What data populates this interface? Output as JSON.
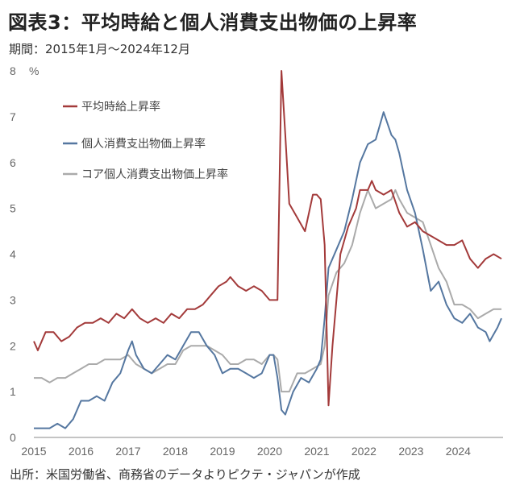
{
  "title": "図表3：平均時給と個人消費支出物価の上昇率",
  "subtitle": "期間：2015年1月～2024年12月",
  "source": "出所：米国労働省、商務省のデータよりピクテ・ジャパンが作成",
  "chart_data": {
    "type": "line",
    "unit": "%",
    "ylim": [
      0,
      8
    ],
    "yticks": [
      0,
      1,
      2,
      3,
      4,
      5,
      6,
      7,
      8
    ],
    "x_tick_labels": [
      "2015",
      "2016",
      "2017",
      "2018",
      "2019",
      "2020",
      "2021",
      "2022",
      "2023",
      "2024"
    ],
    "grid": false,
    "legend_position": "top-left",
    "series": [
      {
        "name": "平均時給上昇率",
        "color": "#a33a3a",
        "points": [
          [
            "2015-01",
            2.1
          ],
          [
            "2015-02",
            1.9
          ],
          [
            "2015-04",
            2.3
          ],
          [
            "2015-06",
            2.3
          ],
          [
            "2015-08",
            2.1
          ],
          [
            "2015-10",
            2.2
          ],
          [
            "2015-12",
            2.4
          ],
          [
            "2016-02",
            2.5
          ],
          [
            "2016-04",
            2.5
          ],
          [
            "2016-06",
            2.6
          ],
          [
            "2016-08",
            2.5
          ],
          [
            "2016-10",
            2.7
          ],
          [
            "2016-12",
            2.6
          ],
          [
            "2017-02",
            2.8
          ],
          [
            "2017-04",
            2.6
          ],
          [
            "2017-06",
            2.5
          ],
          [
            "2017-08",
            2.6
          ],
          [
            "2017-10",
            2.5
          ],
          [
            "2017-12",
            2.7
          ],
          [
            "2018-02",
            2.6
          ],
          [
            "2018-04",
            2.8
          ],
          [
            "2018-06",
            2.8
          ],
          [
            "2018-08",
            2.9
          ],
          [
            "2018-10",
            3.1
          ],
          [
            "2018-12",
            3.3
          ],
          [
            "2019-02",
            3.4
          ],
          [
            "2019-03",
            3.5
          ],
          [
            "2019-05",
            3.3
          ],
          [
            "2019-07",
            3.2
          ],
          [
            "2019-09",
            3.3
          ],
          [
            "2019-11",
            3.2
          ],
          [
            "2020-01",
            3.0
          ],
          [
            "2020-03",
            3.0
          ],
          [
            "2020-04",
            8.0
          ],
          [
            "2020-05",
            6.6
          ],
          [
            "2020-06",
            5.1
          ],
          [
            "2020-08",
            4.8
          ],
          [
            "2020-10",
            4.5
          ],
          [
            "2020-12",
            5.3
          ],
          [
            "2021-01",
            5.3
          ],
          [
            "2021-02",
            5.2
          ],
          [
            "2021-03",
            4.2
          ],
          [
            "2021-04",
            0.7
          ],
          [
            "2021-05",
            2.0
          ],
          [
            "2021-07",
            4.0
          ],
          [
            "2021-09",
            4.6
          ],
          [
            "2021-11",
            5.0
          ],
          [
            "2021-12",
            5.4
          ],
          [
            "2022-02",
            5.4
          ],
          [
            "2022-03",
            5.6
          ],
          [
            "2022-04",
            5.4
          ],
          [
            "2022-06",
            5.3
          ],
          [
            "2022-08",
            5.4
          ],
          [
            "2022-10",
            4.9
          ],
          [
            "2022-12",
            4.6
          ],
          [
            "2023-02",
            4.7
          ],
          [
            "2023-04",
            4.5
          ],
          [
            "2023-06",
            4.4
          ],
          [
            "2023-08",
            4.3
          ],
          [
            "2023-10",
            4.2
          ],
          [
            "2023-12",
            4.2
          ],
          [
            "2024-02",
            4.3
          ],
          [
            "2024-04",
            3.9
          ],
          [
            "2024-06",
            3.7
          ],
          [
            "2024-08",
            3.9
          ],
          [
            "2024-10",
            4.0
          ],
          [
            "2024-12",
            3.9
          ]
        ]
      },
      {
        "name": "個人消費支出物価上昇率",
        "color": "#5577a0",
        "points": [
          [
            "2015-01",
            0.2
          ],
          [
            "2015-03",
            0.2
          ],
          [
            "2015-05",
            0.2
          ],
          [
            "2015-07",
            0.3
          ],
          [
            "2015-09",
            0.2
          ],
          [
            "2015-11",
            0.4
          ],
          [
            "2016-01",
            0.8
          ],
          [
            "2016-03",
            0.8
          ],
          [
            "2016-05",
            0.9
          ],
          [
            "2016-07",
            0.8
          ],
          [
            "2016-09",
            1.2
          ],
          [
            "2016-11",
            1.4
          ],
          [
            "2017-01",
            1.9
          ],
          [
            "2017-02",
            2.1
          ],
          [
            "2017-03",
            1.8
          ],
          [
            "2017-05",
            1.5
          ],
          [
            "2017-07",
            1.4
          ],
          [
            "2017-09",
            1.6
          ],
          [
            "2017-11",
            1.8
          ],
          [
            "2018-01",
            1.7
          ],
          [
            "2018-03",
            2.0
          ],
          [
            "2018-05",
            2.3
          ],
          [
            "2018-07",
            2.3
          ],
          [
            "2018-09",
            2.0
          ],
          [
            "2018-11",
            1.8
          ],
          [
            "2019-01",
            1.4
          ],
          [
            "2019-03",
            1.5
          ],
          [
            "2019-05",
            1.5
          ],
          [
            "2019-07",
            1.4
          ],
          [
            "2019-09",
            1.3
          ],
          [
            "2019-11",
            1.4
          ],
          [
            "2020-01",
            1.8
          ],
          [
            "2020-02",
            1.8
          ],
          [
            "2020-03",
            1.3
          ],
          [
            "2020-04",
            0.6
          ],
          [
            "2020-05",
            0.5
          ],
          [
            "2020-07",
            1.0
          ],
          [
            "2020-09",
            1.3
          ],
          [
            "2020-11",
            1.2
          ],
          [
            "2021-01",
            1.5
          ],
          [
            "2021-02",
            1.7
          ],
          [
            "2021-03",
            2.6
          ],
          [
            "2021-04",
            3.7
          ],
          [
            "2021-06",
            4.1
          ],
          [
            "2021-08",
            4.5
          ],
          [
            "2021-10",
            5.2
          ],
          [
            "2021-12",
            6.0
          ],
          [
            "2022-02",
            6.4
          ],
          [
            "2022-04",
            6.5
          ],
          [
            "2022-06",
            7.1
          ],
          [
            "2022-08",
            6.6
          ],
          [
            "2022-09",
            6.5
          ],
          [
            "2022-10",
            6.2
          ],
          [
            "2022-12",
            5.4
          ],
          [
            "2023-02",
            4.9
          ],
          [
            "2023-04",
            4.1
          ],
          [
            "2023-06",
            3.2
          ],
          [
            "2023-08",
            3.4
          ],
          [
            "2023-10",
            2.9
          ],
          [
            "2023-12",
            2.6
          ],
          [
            "2024-02",
            2.5
          ],
          [
            "2024-04",
            2.7
          ],
          [
            "2024-06",
            2.4
          ],
          [
            "2024-08",
            2.3
          ],
          [
            "2024-09",
            2.1
          ],
          [
            "2024-11",
            2.4
          ],
          [
            "2024-12",
            2.6
          ]
        ]
      },
      {
        "name": "コア個人消費支出物価上昇率",
        "color": "#aaaaaa",
        "points": [
          [
            "2015-01",
            1.3
          ],
          [
            "2015-03",
            1.3
          ],
          [
            "2015-05",
            1.2
          ],
          [
            "2015-07",
            1.3
          ],
          [
            "2015-09",
            1.3
          ],
          [
            "2015-11",
            1.4
          ],
          [
            "2016-01",
            1.5
          ],
          [
            "2016-03",
            1.6
          ],
          [
            "2016-05",
            1.6
          ],
          [
            "2016-07",
            1.7
          ],
          [
            "2016-09",
            1.7
          ],
          [
            "2016-11",
            1.7
          ],
          [
            "2017-01",
            1.8
          ],
          [
            "2017-03",
            1.6
          ],
          [
            "2017-05",
            1.5
          ],
          [
            "2017-07",
            1.4
          ],
          [
            "2017-09",
            1.5
          ],
          [
            "2017-11",
            1.6
          ],
          [
            "2018-01",
            1.6
          ],
          [
            "2018-03",
            1.9
          ],
          [
            "2018-05",
            2.0
          ],
          [
            "2018-07",
            2.0
          ],
          [
            "2018-09",
            2.0
          ],
          [
            "2018-11",
            1.9
          ],
          [
            "2019-01",
            1.8
          ],
          [
            "2019-03",
            1.6
          ],
          [
            "2019-05",
            1.6
          ],
          [
            "2019-07",
            1.7
          ],
          [
            "2019-09",
            1.7
          ],
          [
            "2019-11",
            1.6
          ],
          [
            "2020-01",
            1.8
          ],
          [
            "2020-02",
            1.8
          ],
          [
            "2020-03",
            1.7
          ],
          [
            "2020-04",
            1.0
          ],
          [
            "2020-06",
            1.0
          ],
          [
            "2020-08",
            1.4
          ],
          [
            "2020-10",
            1.4
          ],
          [
            "2020-12",
            1.5
          ],
          [
            "2021-02",
            1.6
          ],
          [
            "2021-03",
            2.0
          ],
          [
            "2021-04",
            3.1
          ],
          [
            "2021-06",
            3.6
          ],
          [
            "2021-08",
            3.8
          ],
          [
            "2021-10",
            4.2
          ],
          [
            "2021-12",
            4.9
          ],
          [
            "2022-02",
            5.4
          ],
          [
            "2022-04",
            5.0
          ],
          [
            "2022-06",
            5.1
          ],
          [
            "2022-08",
            5.2
          ],
          [
            "2022-09",
            5.4
          ],
          [
            "2022-10",
            5.2
          ],
          [
            "2022-12",
            4.9
          ],
          [
            "2023-02",
            4.8
          ],
          [
            "2023-04",
            4.7
          ],
          [
            "2023-06",
            4.2
          ],
          [
            "2023-08",
            3.7
          ],
          [
            "2023-10",
            3.4
          ],
          [
            "2023-12",
            2.9
          ],
          [
            "2024-02",
            2.9
          ],
          [
            "2024-04",
            2.8
          ],
          [
            "2024-06",
            2.6
          ],
          [
            "2024-08",
            2.7
          ],
          [
            "2024-10",
            2.8
          ],
          [
            "2024-12",
            2.8
          ]
        ]
      }
    ]
  }
}
